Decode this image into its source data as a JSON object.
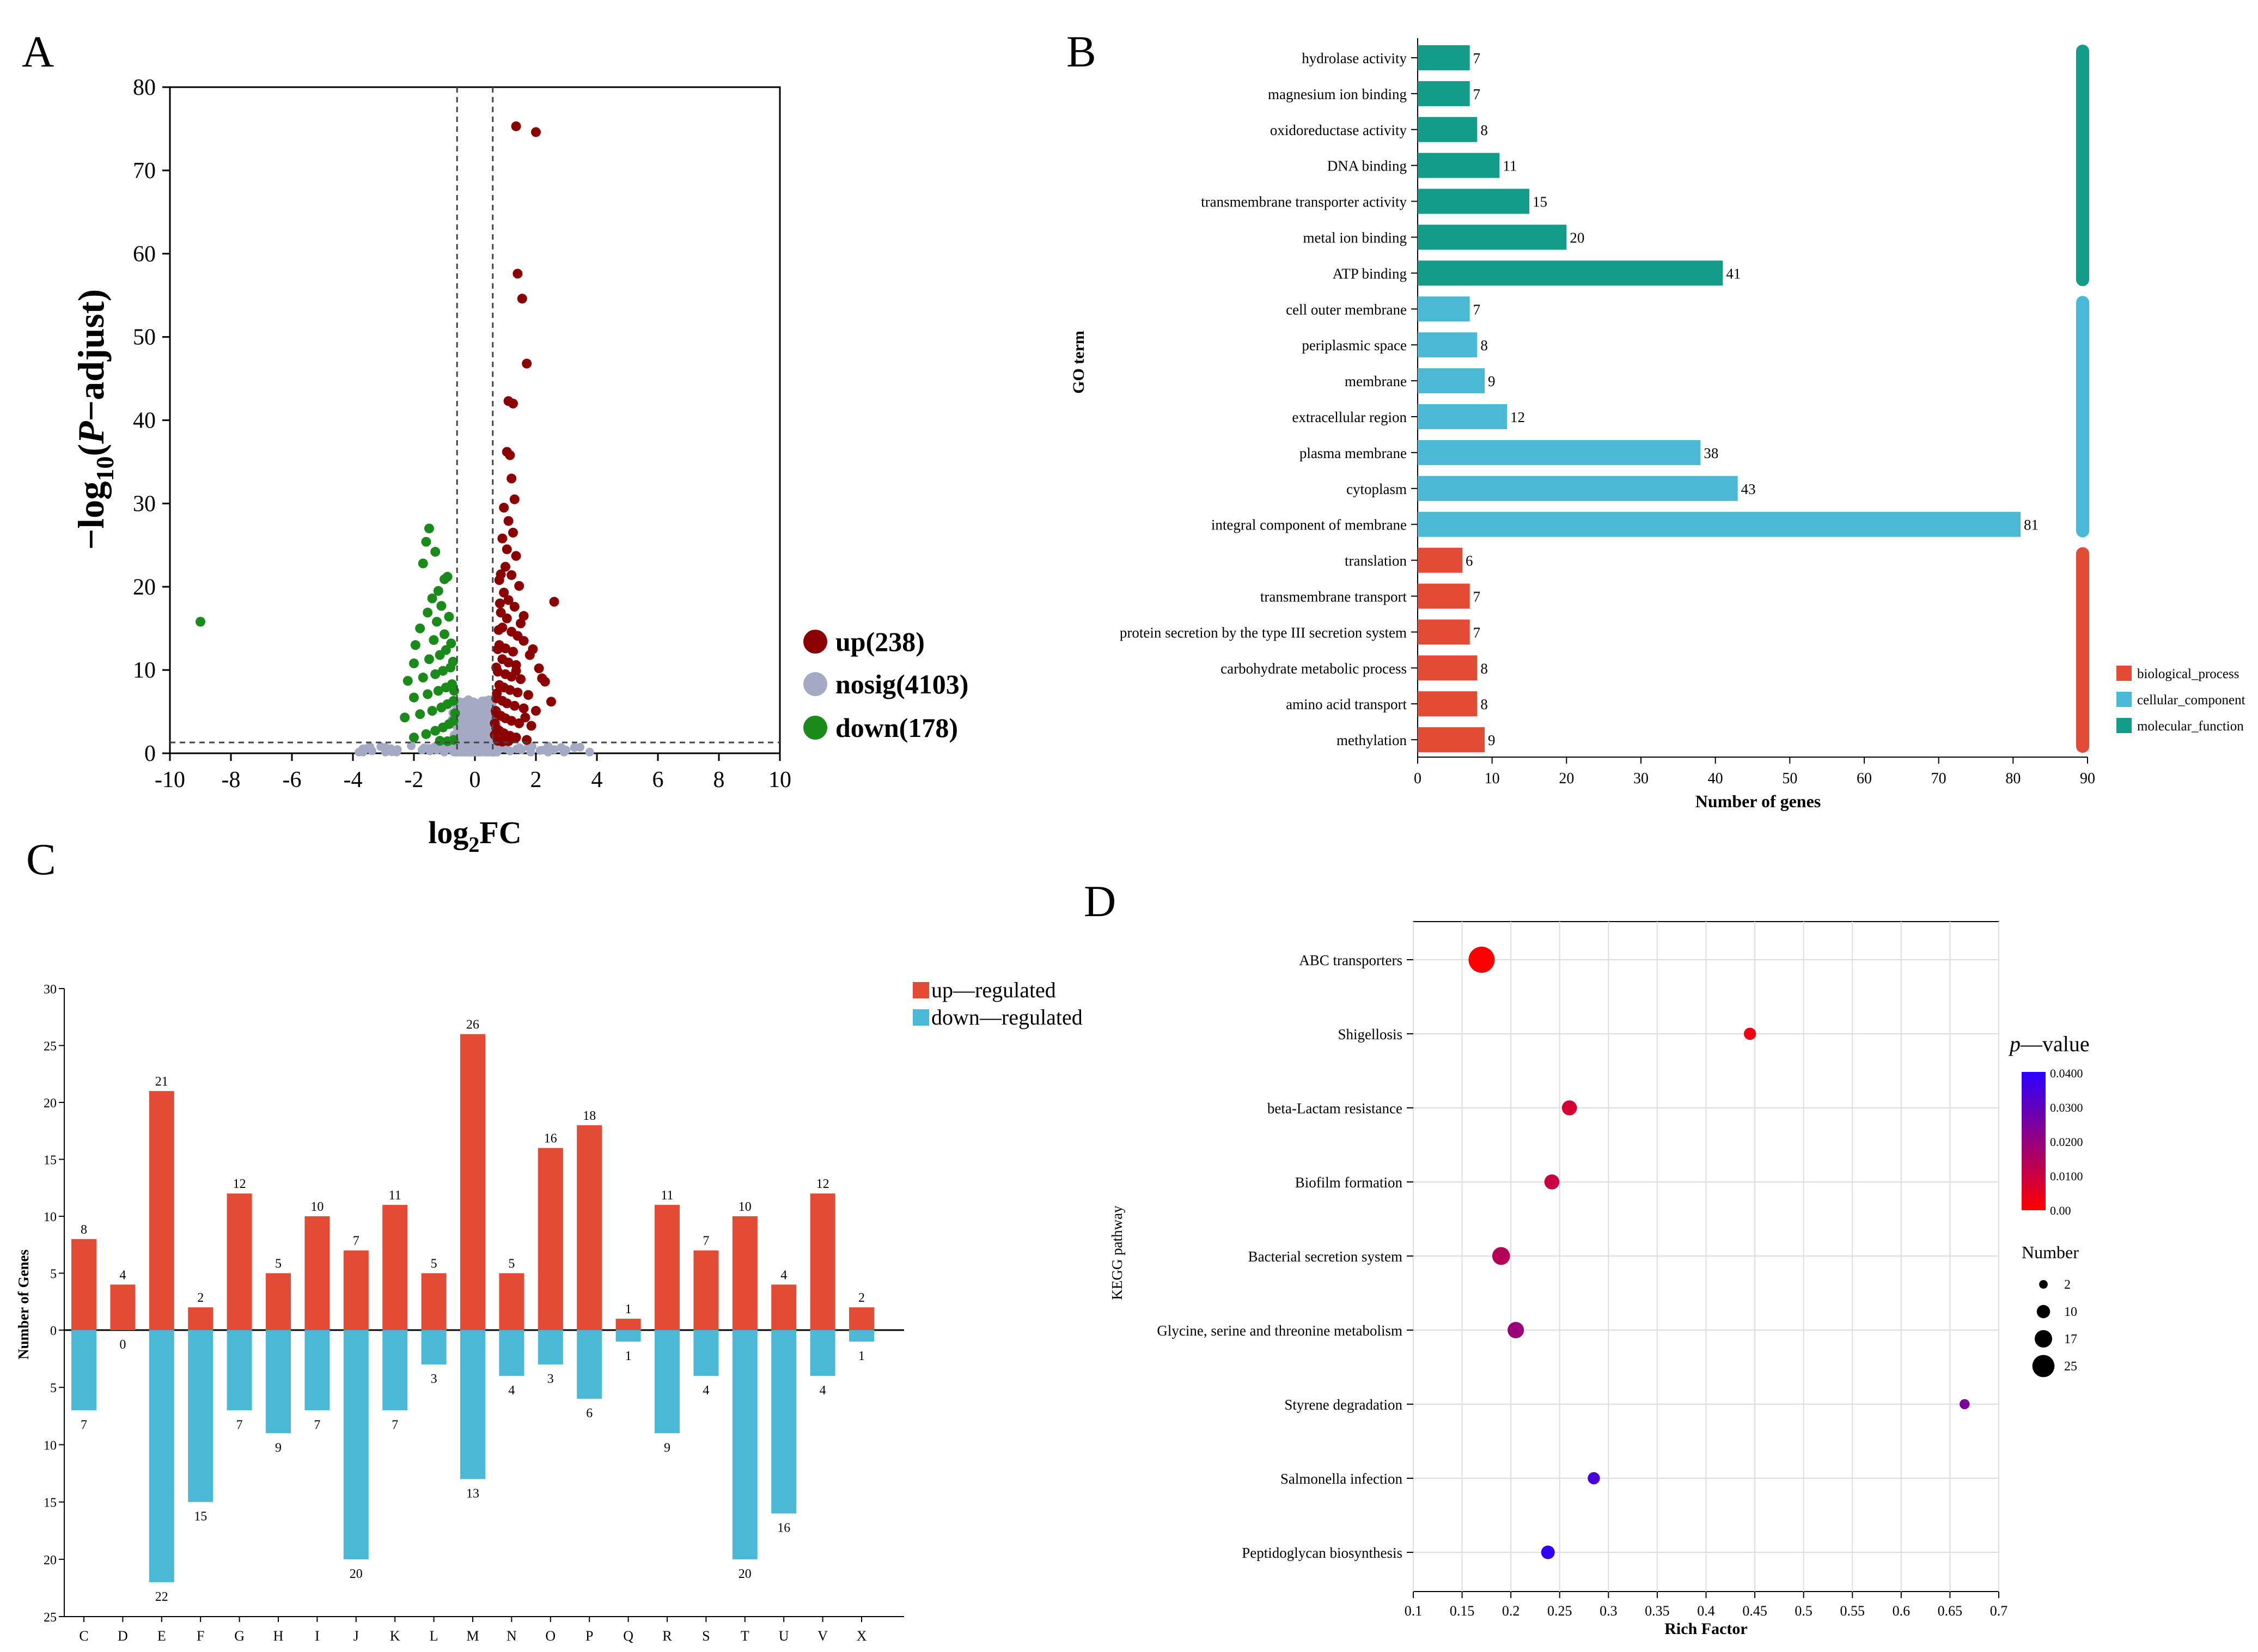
{
  "panel_labels": {
    "a": "A",
    "b": "B",
    "c": "C",
    "d": "D"
  },
  "colors": {
    "up": "#8b0000",
    "nosig": "#a4aac4",
    "down": "#1a8a1a",
    "mf": "#139c87",
    "cc": "#4bb9d6",
    "bp": "#e34b35",
    "reg_up": "#e34b35",
    "reg_down": "#4bb9d6",
    "pval_low": "#ff0000",
    "pval_high": "#2b00ff"
  },
  "chart_data": [
    {
      "id": "A",
      "type": "scatter",
      "title": "",
      "xlabel_parts": {
        "main": "log",
        "sub": "2",
        "tail": "FC"
      },
      "ylabel_parts": {
        "prefix": "−log",
        "sub": "10",
        "paren_open": "(",
        "italic": "P",
        "rest": "−adjust)"
      },
      "xlim": [
        -10,
        10
      ],
      "ylim": [
        0,
        80
      ],
      "x_ticks": [
        -10,
        -8,
        -6,
        -4,
        -2,
        0,
        2,
        4,
        6,
        8,
        10
      ],
      "y_ticks": [
        0,
        10,
        20,
        30,
        40,
        50,
        60,
        70,
        80
      ],
      "thresholds": {
        "x": [
          -0.585,
          0.585
        ],
        "y": 1.3
      },
      "legend": [
        {
          "key": "up",
          "label": "up(238)"
        },
        {
          "key": "nosig",
          "label": "nosig(4103)"
        },
        {
          "key": "down",
          "label": "down(178)"
        }
      ],
      "points_up": [
        [
          1.35,
          75.3
        ],
        [
          2.0,
          74.6
        ],
        [
          1.4,
          57.6
        ],
        [
          1.55,
          54.6
        ],
        [
          1.7,
          46.8
        ],
        [
          1.1,
          42.3
        ],
        [
          1.25,
          42.0
        ],
        [
          2.6,
          18.2
        ],
        [
          1.05,
          36.2
        ],
        [
          1.15,
          35.8
        ],
        [
          1.2,
          33.0
        ],
        [
          1.3,
          30.5
        ],
        [
          0.95,
          29.5
        ],
        [
          1.1,
          27.9
        ],
        [
          1.25,
          26.5
        ],
        [
          0.9,
          25.8
        ],
        [
          1.05,
          24.5
        ],
        [
          1.35,
          23.7
        ],
        [
          1.0,
          22.4
        ],
        [
          1.2,
          21.4
        ],
        [
          0.8,
          20.8
        ],
        [
          1.45,
          20.1
        ],
        [
          0.95,
          19.3
        ],
        [
          1.1,
          18.4
        ],
        [
          1.3,
          17.6
        ],
        [
          0.85,
          16.9
        ],
        [
          1.05,
          16.2
        ],
        [
          1.5,
          15.6
        ],
        [
          0.9,
          15.1
        ],
        [
          1.2,
          14.6
        ],
        [
          1.4,
          14.1
        ],
        [
          1.6,
          13.5
        ],
        [
          0.8,
          13.0
        ],
        [
          1.0,
          12.6
        ],
        [
          1.25,
          12.2
        ],
        [
          1.8,
          11.8
        ],
        [
          0.9,
          11.3
        ],
        [
          1.1,
          10.9
        ],
        [
          1.35,
          10.6
        ],
        [
          2.1,
          10.2
        ],
        [
          0.75,
          9.8
        ],
        [
          1.0,
          9.5
        ],
        [
          1.2,
          9.2
        ],
        [
          1.5,
          8.9
        ],
        [
          2.3,
          8.6
        ],
        [
          0.8,
          8.2
        ],
        [
          0.95,
          7.9
        ],
        [
          1.15,
          7.6
        ],
        [
          1.4,
          7.3
        ],
        [
          1.75,
          7.0
        ],
        [
          0.7,
          6.6
        ],
        [
          0.9,
          6.3
        ],
        [
          1.05,
          6.0
        ],
        [
          1.3,
          5.7
        ],
        [
          1.6,
          5.4
        ],
        [
          2.0,
          5.1
        ],
        [
          0.7,
          4.8
        ],
        [
          0.85,
          4.5
        ],
        [
          1.0,
          4.2
        ],
        [
          1.2,
          3.9
        ],
        [
          1.45,
          3.6
        ],
        [
          1.85,
          3.3
        ],
        [
          0.7,
          3.0
        ],
        [
          0.8,
          2.7
        ],
        [
          0.95,
          2.4
        ],
        [
          1.15,
          2.1
        ],
        [
          1.35,
          1.9
        ],
        [
          1.7,
          1.6
        ],
        [
          0.75,
          1.5
        ],
        [
          0.9,
          1.4
        ],
        [
          1.1,
          1.45
        ],
        [
          0.65,
          2.2
        ],
        [
          0.65,
          3.6
        ],
        [
          0.68,
          5.1
        ],
        [
          0.72,
          7.2
        ],
        [
          0.7,
          10.3
        ],
        [
          0.75,
          12.5
        ],
        [
          0.78,
          14.8
        ],
        [
          0.82,
          18.0
        ],
        [
          0.85,
          21.5
        ],
        [
          2.2,
          9.0
        ],
        [
          1.9,
          12.5
        ],
        [
          1.6,
          16.5
        ],
        [
          1.35,
          9.9
        ],
        [
          1.65,
          4.3
        ],
        [
          2.5,
          6.2
        ]
      ],
      "points_down": [
        [
          -9.0,
          15.8
        ],
        [
          -1.5,
          27.0
        ],
        [
          -1.6,
          25.4
        ],
        [
          -1.3,
          24.2
        ],
        [
          -1.7,
          22.8
        ],
        [
          -1.0,
          20.9
        ],
        [
          -1.2,
          19.5
        ],
        [
          -0.9,
          21.2
        ],
        [
          -1.4,
          18.6
        ],
        [
          -1.1,
          17.7
        ],
        [
          -1.55,
          16.9
        ],
        [
          -0.85,
          16.4
        ],
        [
          -1.25,
          15.8
        ],
        [
          -1.8,
          15.0
        ],
        [
          -1.0,
          14.3
        ],
        [
          -1.35,
          13.6
        ],
        [
          -1.95,
          13.0
        ],
        [
          -0.95,
          12.4
        ],
        [
          -1.15,
          11.8
        ],
        [
          -1.5,
          11.3
        ],
        [
          -2.0,
          10.8
        ],
        [
          -0.8,
          10.3
        ],
        [
          -1.05,
          9.9
        ],
        [
          -1.3,
          9.5
        ],
        [
          -1.7,
          9.1
        ],
        [
          -2.2,
          8.7
        ],
        [
          -0.75,
          8.3
        ],
        [
          -0.95,
          7.9
        ],
        [
          -1.2,
          7.5
        ],
        [
          -1.55,
          7.1
        ],
        [
          -2.0,
          6.7
        ],
        [
          -0.7,
          6.3
        ],
        [
          -0.9,
          5.9
        ],
        [
          -1.1,
          5.5
        ],
        [
          -1.4,
          5.1
        ],
        [
          -1.8,
          4.7
        ],
        [
          -2.3,
          4.3
        ],
        [
          -0.7,
          3.9
        ],
        [
          -0.85,
          3.5
        ],
        [
          -1.05,
          3.1
        ],
        [
          -1.3,
          2.7
        ],
        [
          -1.6,
          2.3
        ],
        [
          -2.0,
          1.9
        ],
        [
          -0.7,
          1.6
        ],
        [
          -0.9,
          1.45
        ],
        [
          -1.15,
          1.5
        ],
        [
          -0.65,
          4.8
        ],
        [
          -0.68,
          7.5
        ],
        [
          -0.72,
          11.0
        ],
        [
          -0.78,
          13.2
        ]
      ]
    },
    {
      "id": "B",
      "type": "bar",
      "orientation": "horizontal",
      "ylabel": "GO term",
      "xlabel": "Number of genes",
      "xlim": [
        0,
        90
      ],
      "x_ticks": [
        0,
        10,
        20,
        30,
        40,
        50,
        60,
        70,
        80,
        90
      ],
      "categories": [
        "hydrolase activity",
        "magnesium ion binding",
        "oxidoreductase activity",
        "DNA binding",
        "transmembrane transporter activity",
        "metal ion binding",
        "ATP binding",
        "cell outer membrane",
        "periplasmic space",
        "membrane",
        "extracellular region",
        "plasma membrane",
        "cytoplasm",
        "integral component of membrane",
        "translation",
        "transmembrane transport",
        "protein secretion by the type III secretion system",
        "carbohydrate metabolic process",
        "amino acid transport",
        "methylation"
      ],
      "values": [
        7,
        7,
        8,
        11,
        15,
        20,
        41,
        7,
        8,
        9,
        12,
        38,
        43,
        81,
        6,
        7,
        7,
        8,
        8,
        9
      ],
      "groups": [
        "mf",
        "mf",
        "mf",
        "mf",
        "mf",
        "mf",
        "mf",
        "cc",
        "cc",
        "cc",
        "cc",
        "cc",
        "cc",
        "cc",
        "bp",
        "bp",
        "bp",
        "bp",
        "bp",
        "bp"
      ],
      "legend": [
        {
          "key": "bp",
          "label": "biological_process"
        },
        {
          "key": "cc",
          "label": "cellular_component"
        },
        {
          "key": "mf",
          "label": "molecular_function"
        }
      ]
    },
    {
      "id": "C",
      "type": "bar",
      "orientation": "diverging",
      "ylabel": "Number of Genes",
      "ylim": [
        -25,
        30
      ],
      "y_ticks_up": [
        0,
        5,
        10,
        15,
        20,
        25,
        30
      ],
      "y_ticks_down": [
        5,
        10,
        15,
        20,
        25
      ],
      "categories": [
        "C",
        "D",
        "E",
        "F",
        "G",
        "H",
        "I",
        "J",
        "K",
        "L",
        "M",
        "N",
        "O",
        "P",
        "Q",
        "R",
        "S",
        "T",
        "U",
        "V",
        "X"
      ],
      "series": [
        {
          "name": "up—regulated",
          "key": "reg_up",
          "values": [
            8,
            4,
            21,
            2,
            12,
            5,
            10,
            7,
            11,
            5,
            26,
            5,
            16,
            18,
            1,
            11,
            7,
            10,
            4,
            12,
            2
          ]
        },
        {
          "name": "down—regulated",
          "key": "reg_down",
          "values": [
            7,
            0,
            22,
            15,
            7,
            9,
            7,
            20,
            7,
            3,
            13,
            4,
            3,
            6,
            1,
            9,
            4,
            20,
            16,
            4,
            1
          ]
        }
      ]
    },
    {
      "id": "D",
      "type": "scatter",
      "subtype": "bubble",
      "ylabel": "KEGG pathway",
      "xlabel": "Rich Factor",
      "xlim": [
        0.1,
        0.7
      ],
      "x_ticks": [
        0.1,
        0.15,
        0.2,
        0.25,
        0.3,
        0.35,
        0.4,
        0.45,
        0.5,
        0.55,
        0.6,
        0.65,
        0.7
      ],
      "categories": [
        "ABC transporters",
        "Shigellosis",
        "beta-Lactam resistance",
        "Biofilm formation",
        "Bacterial secretion system",
        "Glycine, serine and threonine metabolism",
        "Styrene degradation",
        "Salmonella infection",
        "Peptidoglycan biosynthesis"
      ],
      "rich_factor": [
        0.17,
        0.445,
        0.26,
        0.242,
        0.19,
        0.205,
        0.665,
        0.285,
        0.238
      ],
      "number": [
        25,
        5,
        9,
        9,
        13,
        11,
        2,
        5,
        7
      ],
      "p_value": [
        0.0002,
        0.003,
        0.008,
        0.01,
        0.014,
        0.019,
        0.025,
        0.034,
        0.039
      ],
      "color_legend": {
        "title_italic": "p",
        "title_rest": "—value",
        "ticks": [
          "0.0400",
          "0.0300",
          "0.0200",
          "0.0100",
          "0.00"
        ],
        "range": [
          0,
          0.04
        ]
      },
      "size_legend": {
        "title": "Number",
        "values": [
          2,
          10,
          17,
          25
        ]
      }
    }
  ]
}
